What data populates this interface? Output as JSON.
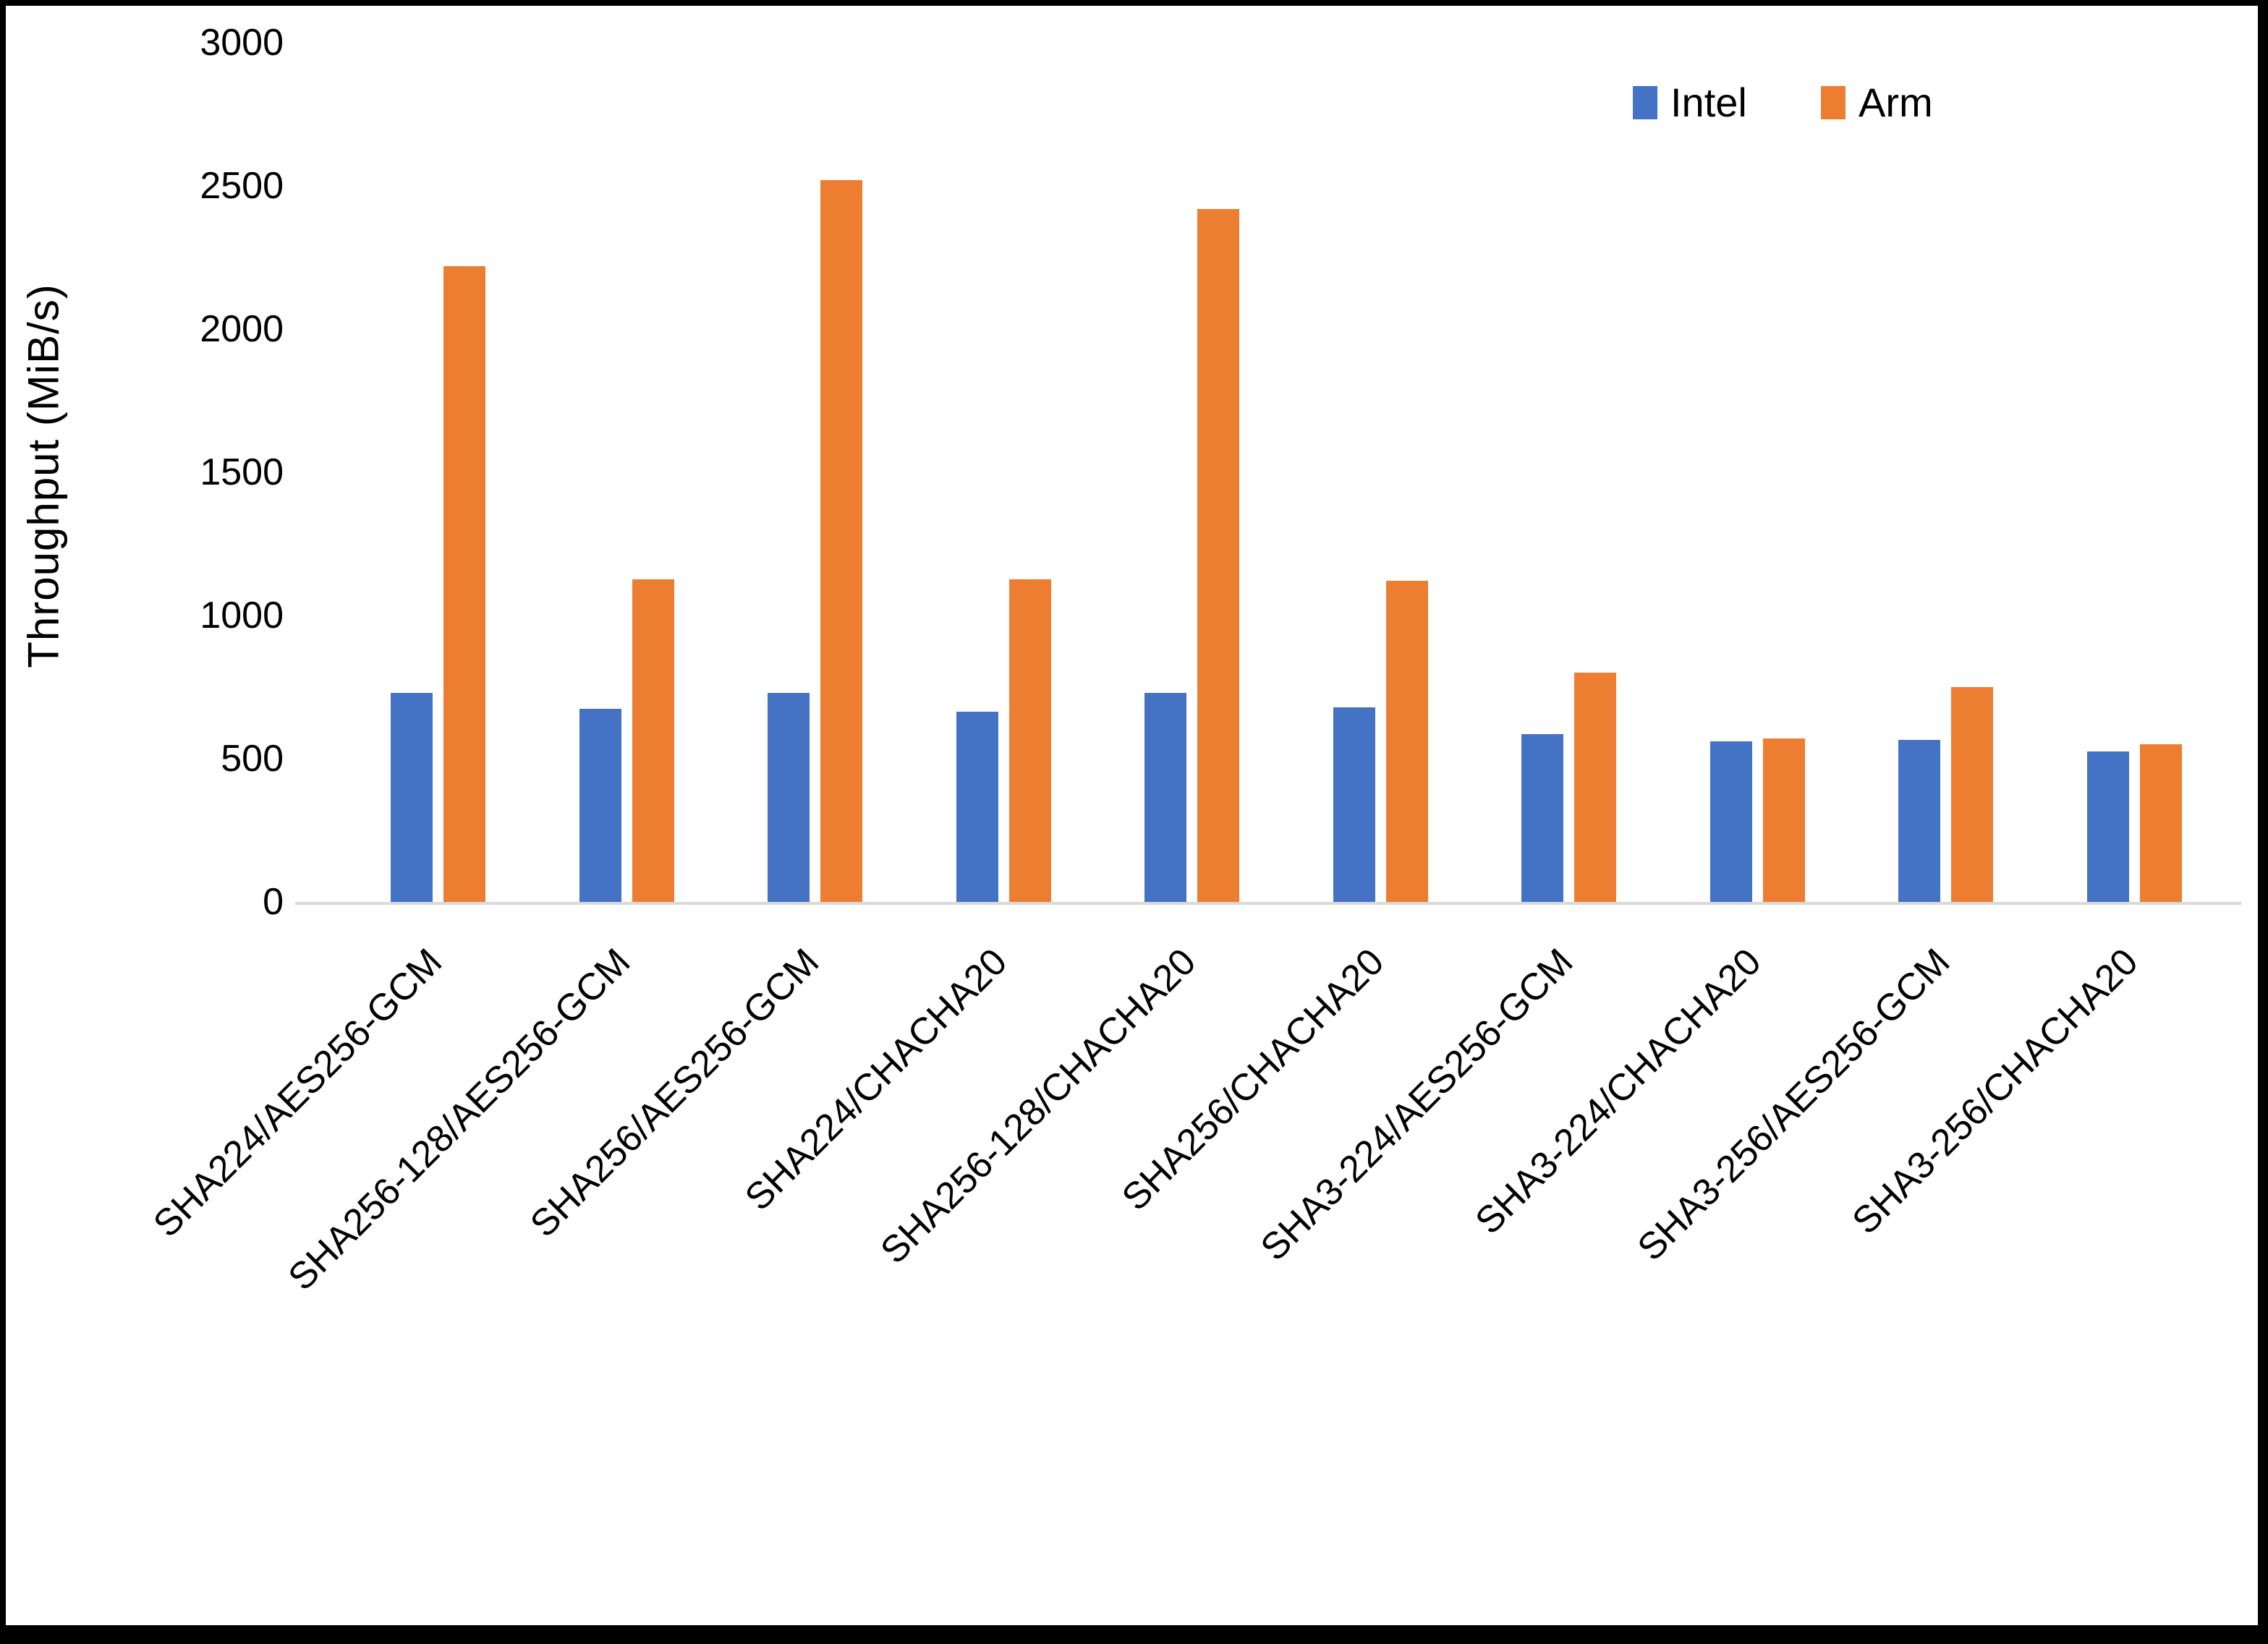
{
  "figure": {
    "background": "#ffffff",
    "border_color": "#000000"
  },
  "chart_data": {
    "type": "bar",
    "title": "",
    "xlabel": "",
    "ylabel": "Throughput (MiB/s)",
    "ylim": [
      0,
      3000
    ],
    "yticks": [
      0,
      500,
      1000,
      1500,
      2000,
      2500,
      3000
    ],
    "grid": false,
    "legend_position": "top-right",
    "axis_line_color": "#d9d9d9",
    "categories": [
      "SHA224/AES256-GCM",
      "SHA256-128/AES256-GCM",
      "SHA256/AES256-GCM",
      "SHA224/CHACHA20",
      "SHA256-128/CHACHA20",
      "SHA256/CHACHA20",
      "SHA3-224/AES256-GCM",
      "SHA3-224/CHACHA20",
      "SHA3-256/AES256-GCM",
      "SHA3-256/CHACHA20"
    ],
    "series": [
      {
        "name": "Intel",
        "color": "#4472C4",
        "values": [
          730,
          675,
          730,
          665,
          730,
          680,
          585,
          560,
          565,
          525
        ]
      },
      {
        "name": "Arm",
        "color": "#ED7D31",
        "values": [
          2220,
          1125,
          2520,
          1125,
          2420,
          1120,
          800,
          570,
          750,
          550
        ]
      }
    ]
  }
}
